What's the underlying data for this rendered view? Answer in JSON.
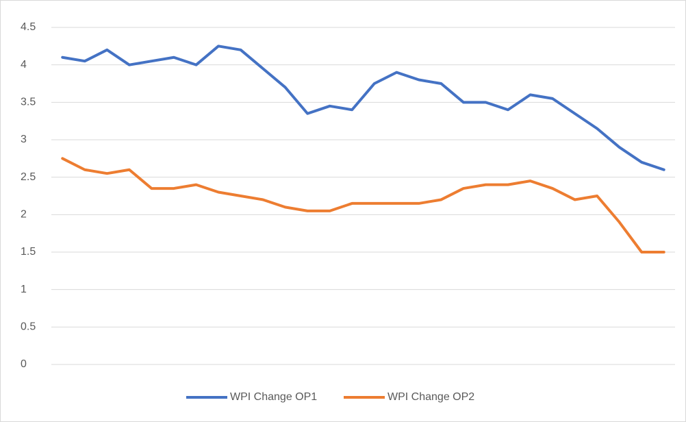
{
  "chart_data": {
    "type": "line",
    "categories": [
      null,
      null,
      null,
      null,
      null,
      null,
      null,
      null,
      null,
      null,
      null,
      null,
      null,
      null,
      null,
      null,
      null,
      null,
      null,
      null,
      null,
      null,
      null,
      null,
      null,
      null,
      null,
      null
    ],
    "series": [
      {
        "name": "WPI Change OP1",
        "color": "#4472c4",
        "values": [
          4.1,
          4.05,
          4.2,
          4.0,
          4.05,
          4.1,
          4.0,
          4.25,
          4.2,
          3.95,
          3.7,
          3.35,
          3.45,
          3.4,
          3.75,
          3.9,
          3.8,
          3.75,
          3.5,
          3.5,
          3.4,
          3.6,
          3.55,
          3.35,
          3.15,
          2.9,
          2.7,
          2.6
        ]
      },
      {
        "name": "WPI Change OP2",
        "color": "#ed7d31",
        "values": [
          2.75,
          2.6,
          2.55,
          2.6,
          2.35,
          2.35,
          2.4,
          2.3,
          2.25,
          2.2,
          2.1,
          2.05,
          2.05,
          2.15,
          2.15,
          2.15,
          2.15,
          2.2,
          2.35,
          2.4,
          2.4,
          2.45,
          2.35,
          2.2,
          2.25,
          1.9,
          1.5,
          1.5
        ]
      }
    ],
    "ylim": [
      0,
      4.5
    ],
    "yticks": [
      0,
      0.5,
      1,
      1.5,
      2,
      2.5,
      3,
      3.5,
      4,
      4.5
    ],
    "grid": true,
    "legend": "bottom"
  }
}
